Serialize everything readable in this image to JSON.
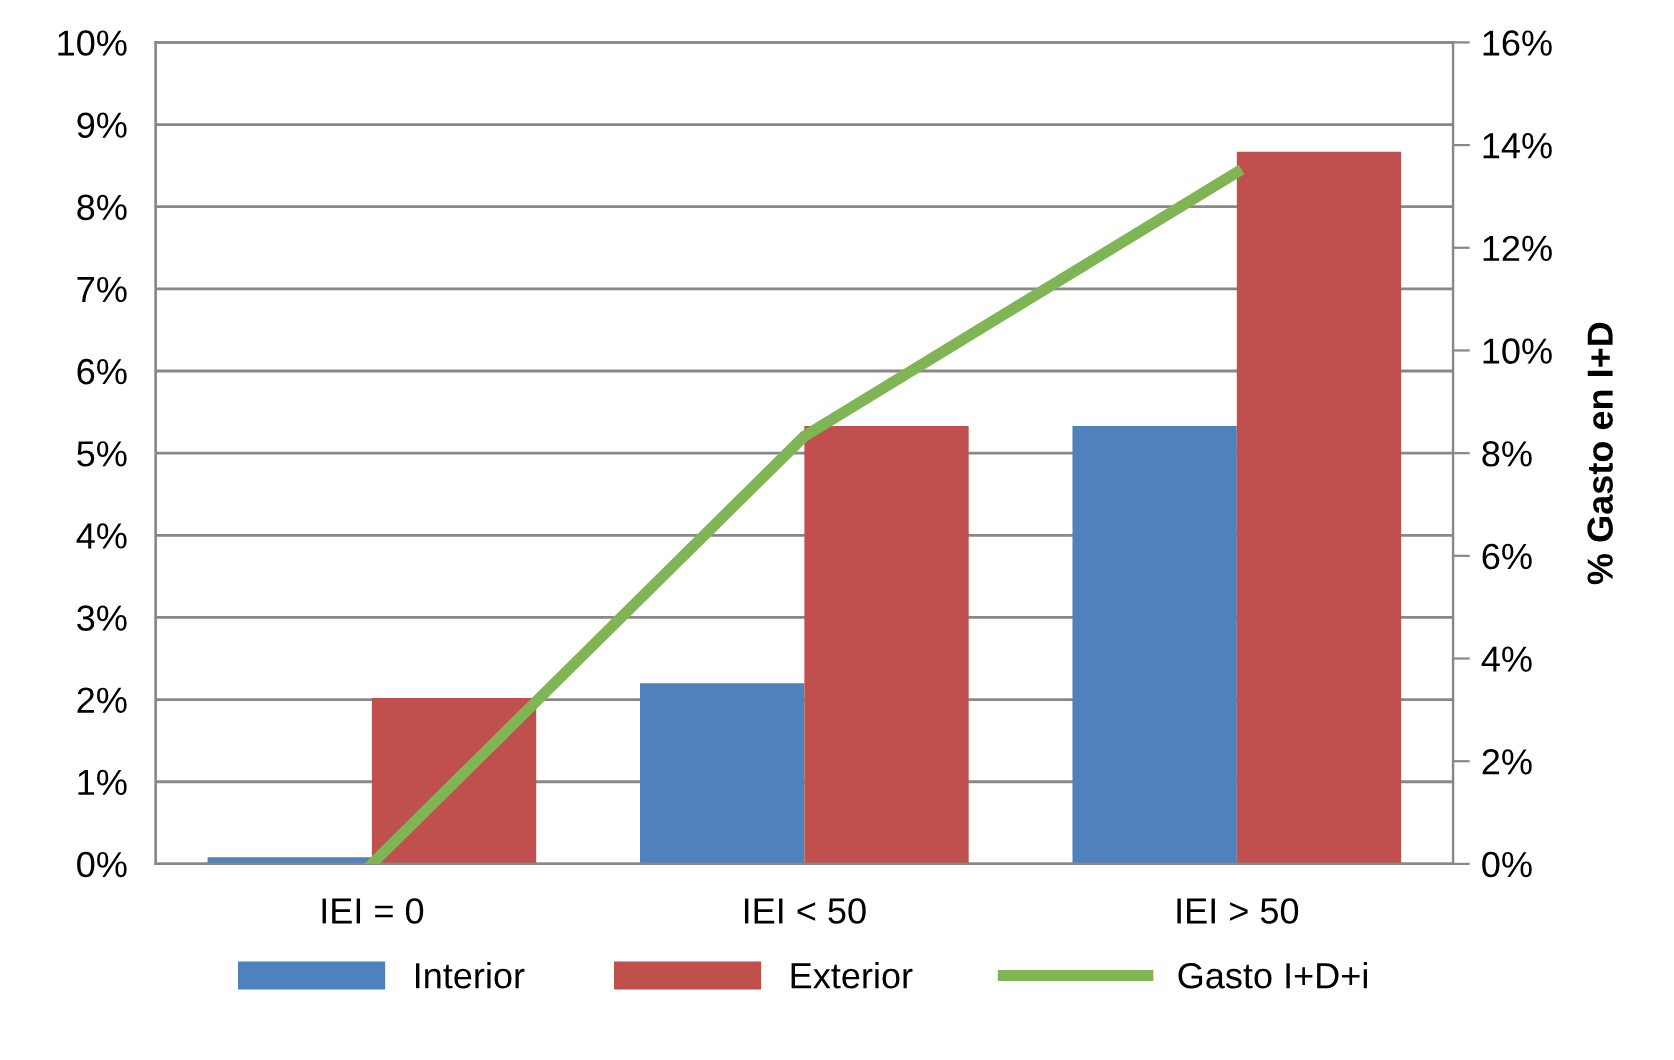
{
  "chart_data": {
    "type": "bar",
    "categories": [
      "IEI = 0",
      "IEI < 50",
      "IEI > 50"
    ],
    "series": [
      {
        "name": "Interior",
        "color": "#4f81bd",
        "values": [
          0.08,
          2.2,
          5.33
        ]
      },
      {
        "name": "Exterior",
        "color": "#c0504d",
        "values": [
          2.02,
          5.33,
          8.67
        ]
      },
      {
        "name": "Gasto I+D+i",
        "type": "line",
        "axis": "y2",
        "color": "#7fb554",
        "values": [
          0,
          8.33,
          13.47
        ]
      }
    ],
    "ylim": [
      0,
      10
    ],
    "yticks": [
      {
        "value": 0,
        "label": "0%"
      },
      {
        "value": 1,
        "label": "1%"
      },
      {
        "value": 2,
        "label": "2%"
      },
      {
        "value": 3,
        "label": "3%"
      },
      {
        "value": 4,
        "label": "4%"
      },
      {
        "value": 5,
        "label": "5%"
      },
      {
        "value": 6,
        "label": "6%"
      },
      {
        "value": 7,
        "label": "7%"
      },
      {
        "value": 8,
        "label": "8%"
      },
      {
        "value": 9,
        "label": "9%"
      },
      {
        "value": 10,
        "label": "10%"
      }
    ],
    "y2lim": [
      0,
      16
    ],
    "y2ticks": [
      {
        "value": 0,
        "label": "0%"
      },
      {
        "value": 2,
        "label": "2%"
      },
      {
        "value": 4,
        "label": "4%"
      },
      {
        "value": 6,
        "label": "6%"
      },
      {
        "value": 8,
        "label": "8%"
      },
      {
        "value": 10,
        "label": "10%"
      },
      {
        "value": 12,
        "label": "12%"
      },
      {
        "value": 14,
        "label": "14%"
      },
      {
        "value": 16,
        "label": "16%"
      }
    ],
    "y2label": "% Gasto en I+D",
    "grid": "y",
    "legend": "bottom",
    "marker": "none",
    "line_style": "solid"
  }
}
